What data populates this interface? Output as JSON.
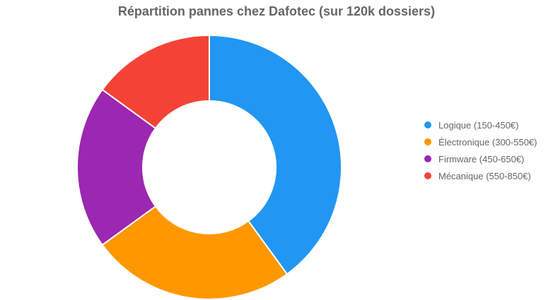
{
  "chart_data": {
    "type": "pie",
    "variant": "donut",
    "title": "Répartition pannes chez Dafotec (sur 120k dossiers)",
    "categories": [
      "Logique (150-450€)",
      "Électronique (300-550€)",
      "Firmware (450-650€)",
      "Mécanique (550-850€)"
    ],
    "values": [
      40,
      25,
      20,
      15
    ],
    "colors": [
      "#2196F3",
      "#FF9800",
      "#9C27B0",
      "#F44336"
    ],
    "legend_position": "right"
  }
}
